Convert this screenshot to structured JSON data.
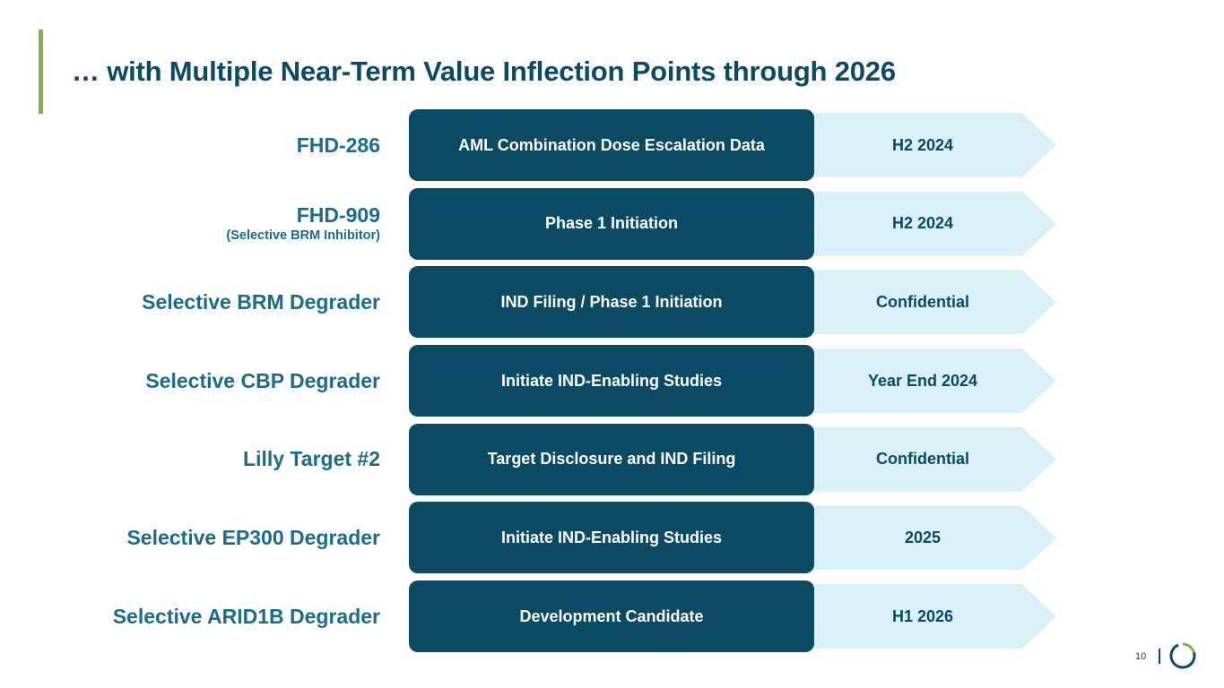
{
  "slide": {
    "title": "… with Multiple Near-Term Value Inflection Points through 2026",
    "page_number": "10"
  },
  "colors": {
    "accent_green": "#7ab648",
    "dark_teal": "#0b4a63",
    "label_blue": "#1a6c8e",
    "light_blue": "#daf0f8"
  },
  "rows": [
    {
      "program": "FHD-286",
      "subtitle": "",
      "milestone": "AML Combination Dose Escalation Data",
      "timing": "H2 2024"
    },
    {
      "program": "FHD-909",
      "subtitle": "(Selective BRM Inhibitor)",
      "milestone": "Phase 1 Initiation",
      "timing": "H2 2024"
    },
    {
      "program": "Selective BRM Degrader",
      "subtitle": "",
      "milestone": "IND Filing / Phase 1 Initiation",
      "timing": "Confidential"
    },
    {
      "program": "Selective CBP Degrader",
      "subtitle": "",
      "milestone": "Initiate IND-Enabling Studies",
      "timing": "Year End 2024"
    },
    {
      "program": "Lilly Target #2",
      "subtitle": "",
      "milestone": "Target Disclosure and IND Filing",
      "timing": "Confidential"
    },
    {
      "program": "Selective EP300 Degrader",
      "subtitle": "",
      "milestone": "Initiate IND-Enabling Studies",
      "timing": "2025"
    },
    {
      "program": "Selective ARID1B Degrader",
      "subtitle": "",
      "milestone": "Development Candidate",
      "timing": "H1 2026"
    }
  ]
}
